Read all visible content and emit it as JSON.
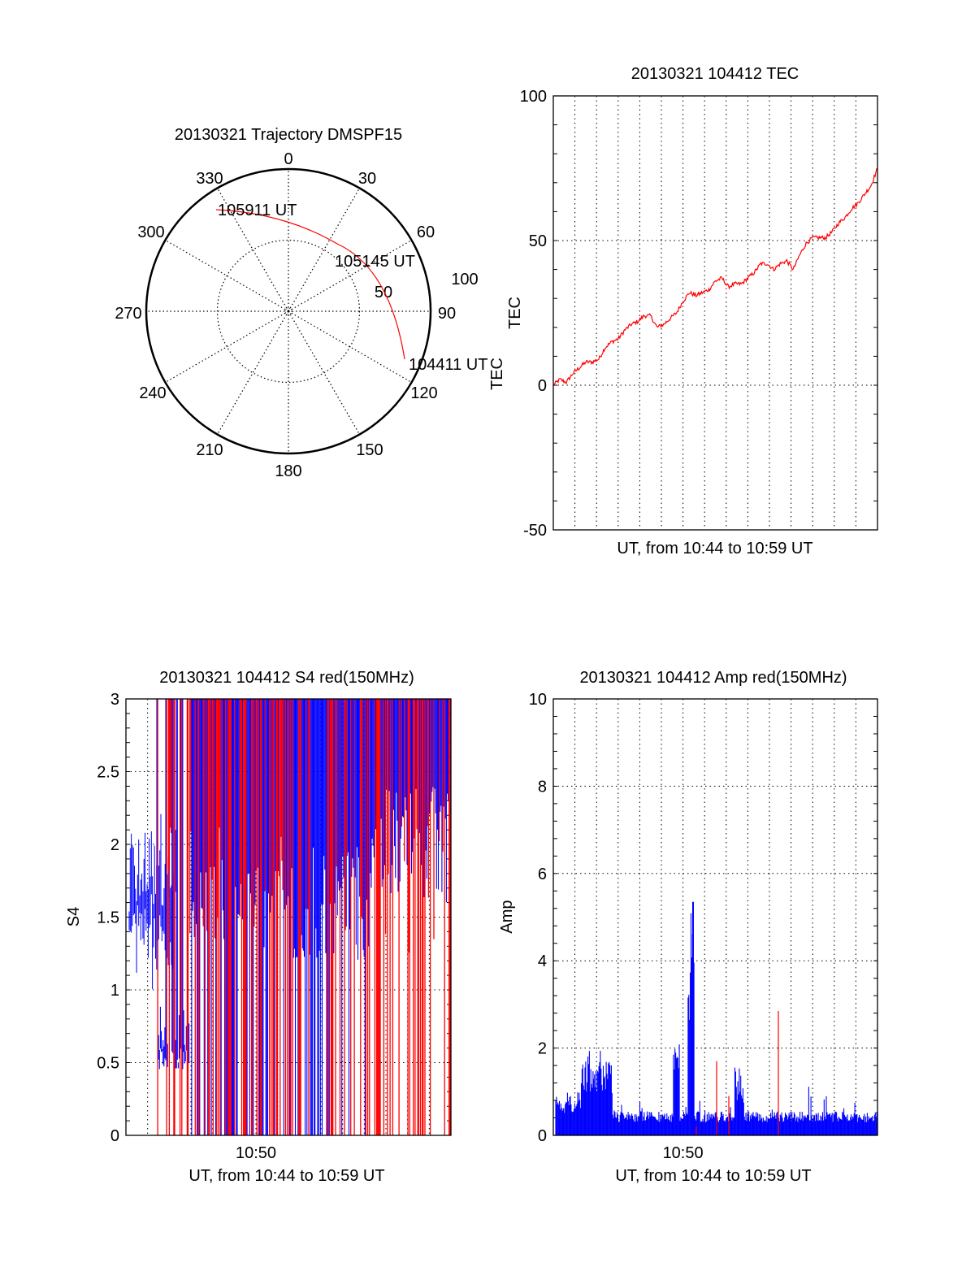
{
  "colors": {
    "red": "#ff0000",
    "blue": "#0000ff",
    "axis": "#000000"
  },
  "chart_data": [
    {
      "type": "polar",
      "title": "20130321 Trajectory DMSPF15",
      "angle_labels": [
        "0",
        "30",
        "60",
        "90",
        "120",
        "150",
        "180",
        "210",
        "240",
        "270",
        "300",
        "330"
      ],
      "angles": [
        0,
        30,
        60,
        90,
        120,
        150,
        180,
        210,
        240,
        270,
        300,
        330
      ],
      "radial_labels": [
        "50",
        "100"
      ],
      "radial_values": [
        50,
        100
      ],
      "rmax": 100,
      "track": {
        "color": "red",
        "points": [
          [
            110,
            93
          ],
          [
            100,
            83
          ],
          [
            90,
            74
          ],
          [
            80,
            67
          ],
          [
            70,
            60
          ],
          [
            60,
            54
          ],
          [
            50,
            49
          ],
          [
            40,
            46
          ],
          [
            30,
            45
          ],
          [
            20,
            49
          ],
          [
            10,
            57
          ],
          [
            0,
            64
          ],
          [
            -10,
            70
          ],
          [
            -20,
            76
          ],
          [
            -26,
            82
          ]
        ]
      },
      "annotations": [
        {
          "text": "104411 UT",
          "az": 110,
          "r": 93
        },
        {
          "text": "105145 UT",
          "az": 62,
          "r": 55
        },
        {
          "text": "105911 UT",
          "az": -26,
          "r": 82
        }
      ],
      "side_label": "TEC"
    },
    {
      "type": "line",
      "title": "20130321 104412 TEC",
      "xlabel": "UT, from 10:44 to 10:59 UT",
      "ylabel": "TEC",
      "xlim": [
        0,
        15
      ],
      "ylim": [
        -50,
        100
      ],
      "yticks": [
        -50,
        0,
        50,
        100
      ],
      "ytick_labels": [
        "-50",
        "0",
        "50",
        "100"
      ],
      "grid": true,
      "series": [
        {
          "name": "TEC",
          "color": "red",
          "x": [
            0,
            0.3,
            0.6,
            0.9,
            1.2,
            1.5,
            1.8,
            2.1,
            2.4,
            2.7,
            3.0,
            3.3,
            3.6,
            3.9,
            4.2,
            4.5,
            4.8,
            5.1,
            5.4,
            5.7,
            6.0,
            6.3,
            6.6,
            6.9,
            7.2,
            7.5,
            7.8,
            8.1,
            8.4,
            8.7,
            9.0,
            9.3,
            9.6,
            9.9,
            10.2,
            10.5,
            10.8,
            11.1,
            11.4,
            11.7,
            12.0,
            12.3,
            12.6,
            12.9,
            13.2,
            13.5,
            13.8,
            14.1,
            14.4,
            14.7,
            15.0
          ],
          "y": [
            0,
            2,
            1,
            4,
            6,
            8,
            8,
            9,
            13,
            15,
            16,
            19,
            21,
            22,
            24,
            24,
            20,
            21,
            23,
            25,
            29,
            32,
            31,
            32,
            33,
            36,
            37,
            34,
            35,
            35,
            37,
            39,
            42,
            42,
            40,
            42,
            43,
            40,
            45,
            49,
            51,
            51,
            51,
            53,
            56,
            58,
            61,
            63,
            66,
            69,
            75
          ]
        }
      ]
    },
    {
      "type": "bar",
      "title": "20130321 104412 S4 red(150MHz)",
      "xlabel": "UT, from 10:44 to 10:59 UT",
      "ylabel": "S4",
      "xlim": [
        0,
        15
      ],
      "ylim": [
        0,
        3
      ],
      "yticks": [
        0,
        0.5,
        1,
        1.5,
        2,
        2.5,
        3
      ],
      "ytick_labels": [
        "0",
        "0.5",
        "1",
        "1.5",
        "2",
        "2.5",
        "3"
      ],
      "xtick_labels": [
        "10:50"
      ],
      "xticks": [
        6
      ],
      "grid": true,
      "series": [
        {
          "name": "S4 red",
          "color": "red",
          "note": "dense spikes saturating to 3 from ~10:45:30 onward"
        },
        {
          "name": "S4 blue",
          "color": "blue",
          "note": "1.2-2.6 early, ~0.5-0.7 near 10:46, saturating 1.5-3 later"
        }
      ]
    },
    {
      "type": "bar",
      "title": "20130321 104412 Amp red(150MHz)",
      "xlabel": "UT, from 10:44 to 10:59 UT",
      "ylabel": "Amp",
      "xlim": [
        0,
        15
      ],
      "ylim": [
        0,
        10
      ],
      "yticks": [
        0,
        2,
        4,
        6,
        8,
        10
      ],
      "ytick_labels": [
        "0",
        "2",
        "4",
        "6",
        "8",
        "10"
      ],
      "xtick_labels": [
        "10:50"
      ],
      "xticks": [
        6
      ],
      "grid": true,
      "series": [
        {
          "name": "Amp blue",
          "color": "blue",
          "peak": 5.35,
          "baseline": 0.4
        },
        {
          "name": "Amp red",
          "color": "red",
          "peak": 2.85
        }
      ]
    }
  ]
}
